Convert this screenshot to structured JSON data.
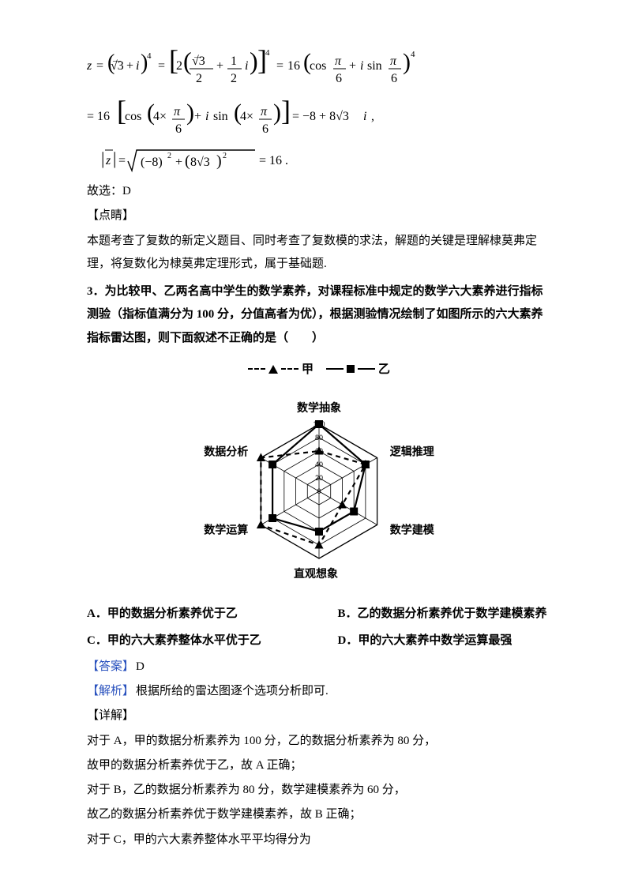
{
  "formula_1_svg_label": "z = (√3+i)^4 = [2((√3/2)+(1/2)i)]^4 = 16(cos π/6 + i sin π/6)^4",
  "formula_2_svg_label": "= 16[cos(4×π/6)+i sin(4×π/6)] = -8 + 8√3 i ,",
  "formula_3_svg_label": "|z| = √((−8)^2 + (8√3)^2) = 16 .",
  "line_answer_select": "故选：D",
  "dianjing_tag": "【点睛】",
  "dianjing_text_1": "本题考查了复数的新定义题目、同时考查了复数模的求法，解题的关键是理解棣莫弗定理，将复数化为棣莫弗定理形式，属于基础题.",
  "q3_title": "3．为比较甲、乙两名高中学生的数学素养，对课程标准中规定的数学六大素养进行指标测验（指标值满分为 100 分，分值高者为优），根据测验情况绘制了如图所示的六大素养指标雷达图，则下面叙述不正确的是（　　）",
  "legend": {
    "jia": "甲",
    "yi": "乙"
  },
  "radar": {
    "axes": [
      "数学抽象",
      "逻辑推理",
      "数学建模",
      "直观想象",
      "数学运算",
      "数据分析"
    ],
    "axis_ticks": [
      "100",
      "80",
      "60",
      "40",
      "20",
      "0"
    ],
    "series": {
      "jia": {
        "label": "甲",
        "style": "dashed-tri",
        "values": [
          60,
          80,
          40,
          80,
          100,
          100
        ]
      },
      "yi": {
        "label": "乙",
        "style": "solid-sq",
        "values": [
          100,
          80,
          60,
          60,
          80,
          80
        ]
      }
    },
    "colors": {
      "line": "#000000",
      "bg": "#ffffff"
    }
  },
  "options": {
    "A": "A．甲的数据分析素养优于乙",
    "B": "B．乙的数据分析素养优于数学建模素养",
    "C": "C．甲的六大素养整体水平优于乙",
    "D": "D．甲的六大素养中数学运算最强"
  },
  "answer_tag": "【答案】",
  "answer_letter": "D",
  "jiexi_tag": "【解析】",
  "jiexi_text": "根据所给的雷达图逐个选项分析即可.",
  "xiangjie_tag": "【详解】",
  "detail_lines": [
    "对于 A，甲的数据分析素养为 100 分，乙的数据分析素养为 80 分，",
    "故甲的数据分析素养优于乙，故 A 正确；",
    "对于 B，乙的数据分析素养为 80 分，数学建模素养为 60 分，",
    "故乙的数据分析素养优于数学建模素养，故 B 正确；",
    "对于 C，甲的六大素养整体水平平均得分为"
  ]
}
